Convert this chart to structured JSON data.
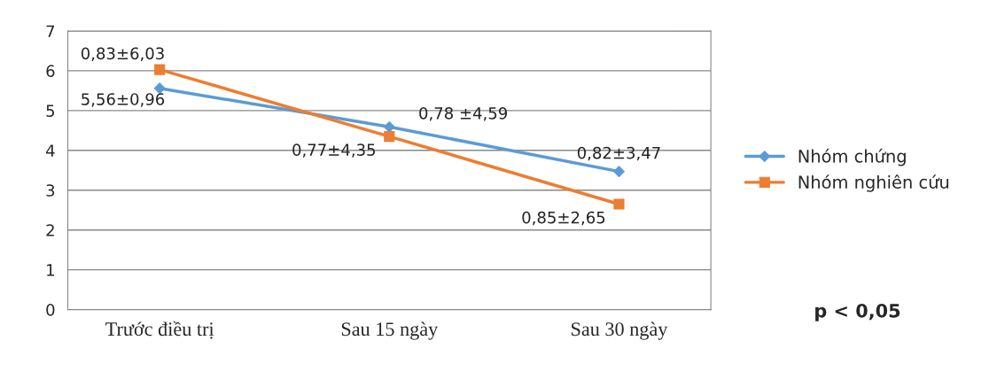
{
  "chart_data": {
    "type": "line",
    "categories": [
      "Trước điều trị",
      "Sau 15 ngày",
      "Sau 30 ngày"
    ],
    "series": [
      {
        "name": "Nhóm chứng",
        "color": "#5b9bd5",
        "marker": "diamond",
        "values": [
          5.56,
          4.59,
          3.47
        ],
        "value_labels": [
          "5,56±0,96",
          "0,78 ±4,59",
          "0,82±3,47"
        ]
      },
      {
        "name": "Nhóm nghiên cứu",
        "color": "#ed7d31",
        "marker": "square",
        "values": [
          6.03,
          4.35,
          2.65
        ],
        "value_labels": [
          "0,83±6,03",
          "0,77±4,35",
          "0,85±2,65"
        ]
      }
    ],
    "ylim": [
      0,
      7
    ],
    "yticks": [
      0,
      1,
      2,
      3,
      4,
      5,
      6,
      7
    ],
    "grid": "y",
    "legend": "right",
    "annotations": [
      "p < 0,05"
    ]
  }
}
